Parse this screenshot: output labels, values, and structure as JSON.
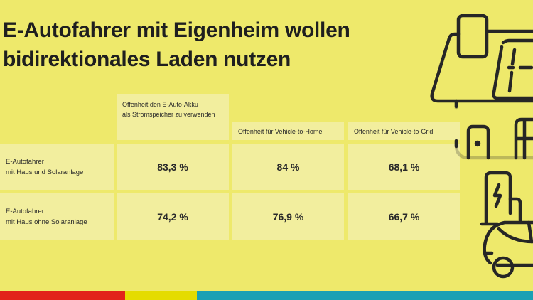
{
  "title_line1": "E-Autofahrer mit Eigenheim wollen",
  "title_line2": "bidirektionales Laden nutzen",
  "table": {
    "headers": [
      "Offenheit den E-Auto-Akku",
      "als Stromspeicher zu verwenden",
      "Offenheit für Vehicle-to-Home",
      "Offenheit für Vehicle-to-Grid"
    ],
    "rows": [
      {
        "label1": "E-Autofahrer",
        "label2": "mit Haus und Solaranlage",
        "values": [
          "83,3 %",
          "84 %",
          "68,1 %"
        ]
      },
      {
        "label1": "E-Autofahrer",
        "label2": "mit Haus ohne Solaranlage",
        "values": [
          "74,2 %",
          "76,9 %",
          "66,7 %"
        ]
      }
    ]
  },
  "colors": {
    "background": "#EEE96B",
    "cell": "#F2EE9E",
    "bar_red": "#E2231A",
    "bar_yellow": "#E4DC00",
    "bar_teal": "#1AA0B4"
  },
  "illustration_icons": [
    "house-solar-icon",
    "charging-station-icon",
    "electric-car-icon"
  ]
}
